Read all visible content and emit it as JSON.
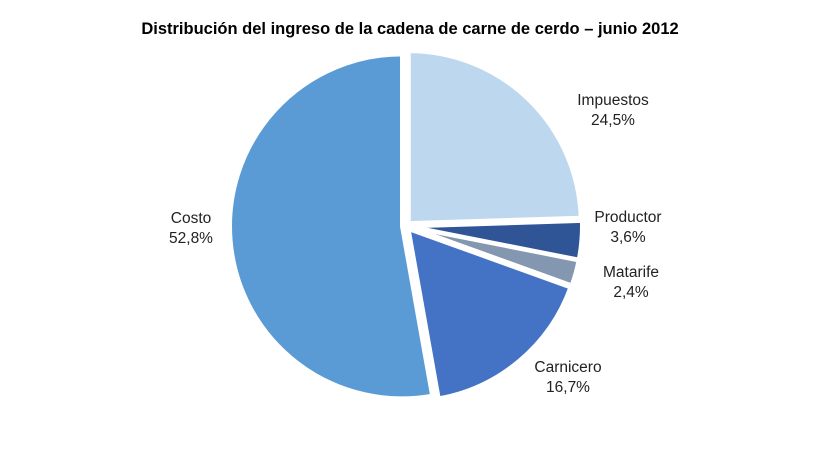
{
  "chart_data": {
    "type": "pie",
    "title": "Distribución del ingreso de la cadena de carne de cerdo – junio 2012",
    "start_angle": "top",
    "direction": "clockwise",
    "legend": "none",
    "slices": [
      {
        "label": "Impuestos",
        "value": 24.5,
        "value_label": "24,5%",
        "color": "#BDD7EE"
      },
      {
        "label": "Productor",
        "value": 3.6,
        "value_label": "3,6%",
        "color": "#2F5597"
      },
      {
        "label": "Matarife",
        "value": 2.4,
        "value_label": "2,4%",
        "color": "#8497B0"
      },
      {
        "label": "Carnicero",
        "value": 16.7,
        "value_label": "16,7%",
        "color": "#4472C4"
      },
      {
        "label": "Costo",
        "value": 52.8,
        "value_label": "52,8%",
        "color": "#5B9BD5"
      }
    ]
  }
}
